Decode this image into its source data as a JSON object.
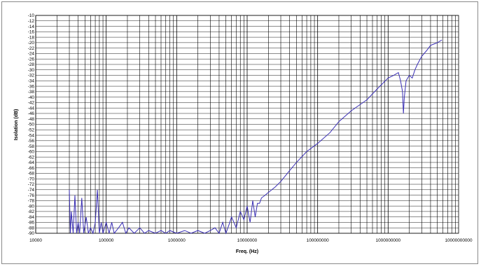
{
  "chart_data": {
    "type": "line",
    "title": "",
    "xlabel": "Freq. (Hz)",
    "ylabel": "Isolation (dB)",
    "x_scale": "log",
    "xlim": [
      10000,
      10000000000
    ],
    "ylim": [
      -90,
      -10
    ],
    "grid": true,
    "legend": "none",
    "x_tick_labels": [
      "10000",
      "100000",
      "1000000",
      "10000000",
      "100000000",
      "1000000000",
      "10000000000"
    ],
    "y_tick_labels": [
      "-10",
      "-12",
      "-14",
      "-16",
      "-18",
      "-20",
      "-22",
      "-24",
      "-26",
      "-28",
      "-30",
      "-32",
      "-34",
      "-36",
      "-38",
      "-40",
      "-42",
      "-44",
      "-46",
      "-48",
      "-50",
      "-52",
      "-54",
      "-56",
      "-58",
      "-60",
      "-62",
      "-64",
      "-66",
      "-68",
      "-70",
      "-72",
      "-74",
      "-76",
      "-78",
      "-80",
      "-82",
      "-84",
      "-86",
      "-88",
      "-90"
    ],
    "series": [
      {
        "color": "#3a2fb5",
        "x": [
          30000,
          31000,
          32000,
          34000,
          36000,
          38000,
          40000,
          42000,
          45000,
          48000,
          52000,
          56000,
          60000,
          65000,
          70000,
          75000,
          80000,
          85000,
          90000,
          95000,
          100000,
          110000,
          120000,
          130000,
          150000,
          170000,
          190000,
          210000,
          250000,
          300000,
          350000,
          400000,
          500000,
          600000,
          700000,
          800000,
          1000000,
          1300000,
          1600000,
          2000000,
          2500000,
          3000000,
          3500000,
          4000000,
          4500000,
          5000000,
          5500000,
          6000000,
          7000000,
          8000000,
          9000000,
          10000000,
          11000000,
          12000000,
          13000000,
          14000000,
          15000000,
          16000000,
          18000000,
          20000000,
          25000000,
          30000000,
          40000000,
          50000000,
          70000000,
          100000000,
          150000000,
          200000000,
          300000000,
          500000000,
          700000000,
          1000000000,
          1200000000,
          1400000000,
          1500000000,
          1600000000,
          1650000000,
          1700000000,
          1800000000,
          2000000000,
          2200000000,
          2400000000,
          2600000000,
          3000000000,
          3500000000,
          4000000000,
          5000000000,
          5800000000
        ],
        "values": [
          -74,
          -90,
          -82,
          -90,
          -76,
          -90,
          -86,
          -90,
          -77,
          -90,
          -84,
          -90,
          -88,
          -90,
          -86,
          -74,
          -90,
          -86,
          -90,
          -88,
          -86,
          -90,
          -86,
          -90,
          -88,
          -86,
          -90,
          -88,
          -90,
          -88,
          -90,
          -89,
          -90,
          -89,
          -90,
          -89,
          -90,
          -89,
          -90,
          -89,
          -90,
          -89,
          -88,
          -90,
          -86,
          -90,
          -87,
          -84,
          -88,
          -82,
          -85,
          -80,
          -86,
          -78,
          -84,
          -79,
          -79,
          -77,
          -76,
          -75,
          -73,
          -71,
          -67,
          -64,
          -60,
          -57,
          -53,
          -49,
          -45,
          -41,
          -37,
          -33,
          -32,
          -31,
          -34,
          -38,
          -46,
          -40,
          -34,
          -32,
          -33,
          -30,
          -28,
          -25,
          -23,
          -21,
          -20,
          -19
        ]
      }
    ]
  }
}
